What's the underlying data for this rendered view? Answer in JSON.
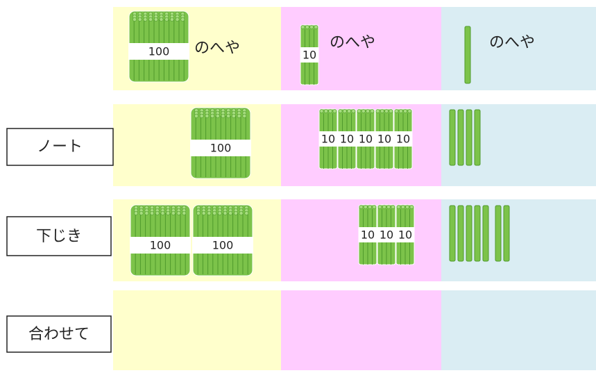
{
  "header": {
    "columns": [
      {
        "icon_label": "100",
        "label": "のへや"
      },
      {
        "icon_label": "10",
        "label": "のへや"
      },
      {
        "label": "のへや"
      }
    ]
  },
  "rows": [
    {
      "label": "ノート",
      "hundreds": [
        "100"
      ],
      "tens": [
        "10",
        "10",
        "10",
        "10",
        "10"
      ],
      "ones": 4
    },
    {
      "label": "下じき",
      "hundreds": [
        "100",
        "100"
      ],
      "tens": [
        "10",
        "10",
        "10"
      ],
      "ones": 7
    },
    {
      "label": "合わせて"
    }
  ]
}
